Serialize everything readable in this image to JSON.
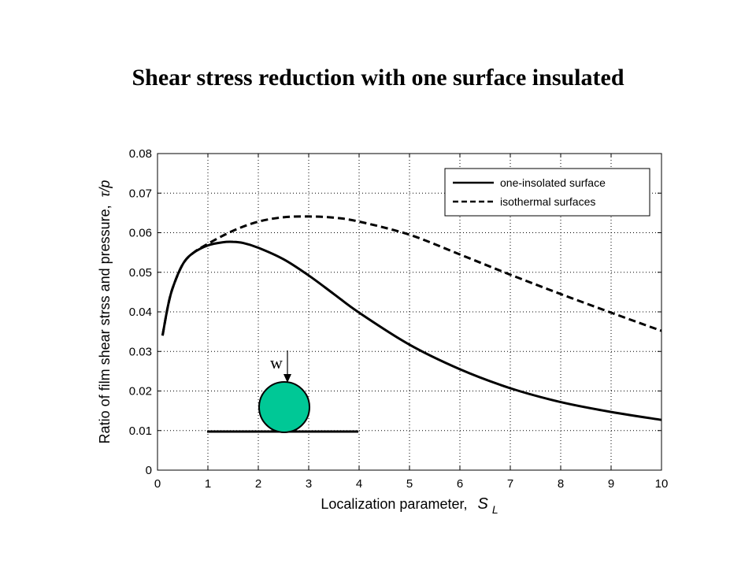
{
  "slide": {
    "title": "Shear stress reduction with one surface insulated"
  },
  "chart_data": {
    "type": "line",
    "title": "",
    "xlabel": "Localization parameter,",
    "xlabel_symbol": "S",
    "xlabel_subscript": "L",
    "ylabel": "Ratio of film shear strss and pressure,",
    "ylabel_symbol": "τ/p",
    "xlim": [
      0,
      10
    ],
    "ylim": [
      0,
      0.08
    ],
    "xticks": [
      "0",
      "1",
      "2",
      "3",
      "4",
      "5",
      "6",
      "7",
      "8",
      "9",
      "10"
    ],
    "yticks": [
      "0",
      "0.01",
      "0.02",
      "0.03",
      "0.04",
      "0.05",
      "0.06",
      "0.07",
      "0.08"
    ],
    "grid": true,
    "legend_position": "top-right",
    "series": [
      {
        "name": "one-insolated surface",
        "style": "solid",
        "color": "#000000",
        "x": [
          0.1,
          0.2,
          0.3,
          0.5,
          0.7,
          1.0,
          1.3,
          1.5,
          1.7,
          2.0,
          2.5,
          3.0,
          3.5,
          4.0,
          5.0,
          6.0,
          7.0,
          8.0,
          9.0,
          10.0
        ],
        "y": [
          0.034,
          0.041,
          0.046,
          0.052,
          0.0548,
          0.0568,
          0.0576,
          0.0577,
          0.0574,
          0.0562,
          0.0533,
          0.0492,
          0.0445,
          0.0398,
          0.0317,
          0.0255,
          0.0207,
          0.0172,
          0.0147,
          0.0127
        ]
      },
      {
        "name": "isothermal surfaces",
        "style": "dashed",
        "color": "#000000",
        "x": [
          0.1,
          0.2,
          0.3,
          0.5,
          0.7,
          1.0,
          1.5,
          2.0,
          2.5,
          3.0,
          3.5,
          4.0,
          5.0,
          6.0,
          7.0,
          8.0,
          9.0,
          10.0
        ],
        "y": [
          0.034,
          0.041,
          0.046,
          0.052,
          0.0548,
          0.0572,
          0.0605,
          0.0628,
          0.0639,
          0.0641,
          0.0638,
          0.0628,
          0.0595,
          0.0545,
          0.0494,
          0.0445,
          0.0398,
          0.0352
        ]
      }
    ],
    "inset": {
      "load_label": "w",
      "ball_color": "#00C896"
    }
  }
}
